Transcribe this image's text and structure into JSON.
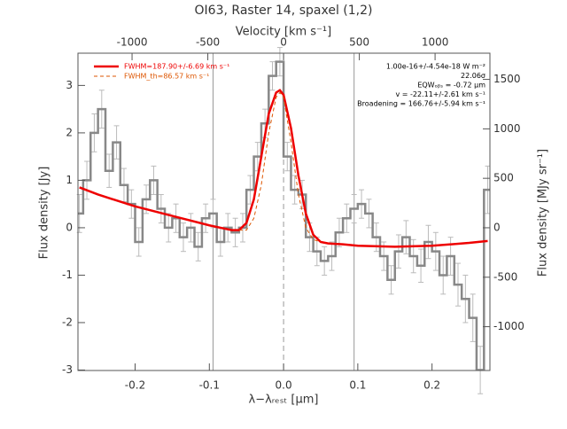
{
  "chart_data": {
    "type": "step",
    "title": "OI63, Raster 14, spaxel (1,2)",
    "xlabel": "λ−λᵣₑₛₜ [μm]",
    "ylabel": "Flux density [Jy]",
    "x2label": "Velocity [km s⁻¹]",
    "y2label": "Flux density [MJy sr⁻¹]",
    "xlim": [
      -0.277,
      0.278
    ],
    "xticks": [
      -0.2,
      -0.1,
      {
        "value": 0,
        "label": "0.0"
      },
      0.1,
      0.2
    ],
    "ylim": [
      -3.01,
      3.68
    ],
    "yticks": [
      -3,
      -2,
      -1,
      0,
      1,
      2,
      3
    ],
    "x2lim": [
      -1357,
      1362
    ],
    "x2ticks": [
      -1000,
      -500,
      0,
      500,
      1000
    ],
    "y2lim": [
      -1443,
      1765
    ],
    "y2ticks": [
      -1000,
      -500,
      0,
      500,
      1000,
      1500
    ],
    "vlines": [
      -0.095,
      0.095
    ],
    "center_line": 0,
    "spectrum": {
      "color": "#888888",
      "x": [
        -0.275,
        -0.265,
        -0.255,
        -0.245,
        -0.235,
        -0.225,
        -0.215,
        -0.205,
        -0.195,
        -0.185,
        -0.175,
        -0.165,
        -0.155,
        -0.145,
        -0.135,
        -0.125,
        -0.115,
        -0.105,
        -0.095,
        -0.085,
        -0.075,
        -0.065,
        -0.055,
        -0.045,
        -0.035,
        -0.025,
        -0.015,
        -0.005,
        0.005,
        0.015,
        0.025,
        0.035,
        0.045,
        0.055,
        0.065,
        0.075,
        0.085,
        0.095,
        0.105,
        0.115,
        0.125,
        0.135,
        0.145,
        0.155,
        0.165,
        0.175,
        0.185,
        0.195,
        0.205,
        0.215,
        0.225,
        0.235,
        0.245,
        0.255,
        0.265,
        0.275
      ],
      "values": [
        0.3,
        1.0,
        2.0,
        2.5,
        1.2,
        1.8,
        0.9,
        0.5,
        -0.3,
        0.6,
        1.0,
        0.4,
        0.0,
        0.2,
        -0.2,
        0.0,
        -0.4,
        0.2,
        0.3,
        -0.3,
        0.0,
        -0.1,
        0.0,
        0.8,
        1.5,
        2.2,
        3.2,
        3.5,
        1.5,
        0.8,
        0.7,
        -0.2,
        -0.5,
        -0.7,
        -0.6,
        -0.1,
        0.2,
        0.4,
        0.5,
        0.3,
        -0.2,
        -0.6,
        -1.1,
        -0.5,
        -0.2,
        -0.6,
        -0.8,
        -0.3,
        -0.5,
        -1.0,
        -0.6,
        -1.2,
        -1.5,
        -1.9,
        -3.0,
        0.8
      ],
      "errors": [
        0.4,
        0.4,
        0.4,
        0.4,
        0.35,
        0.35,
        0.35,
        0.3,
        0.3,
        0.3,
        0.3,
        0.3,
        0.3,
        0.3,
        0.3,
        0.3,
        0.3,
        0.3,
        0.3,
        0.3,
        0.3,
        0.3,
        0.3,
        0.3,
        0.3,
        0.3,
        0.3,
        0.3,
        0.3,
        0.3,
        0.3,
        0.3,
        0.3,
        0.3,
        0.3,
        0.3,
        0.3,
        0.3,
        0.3,
        0.3,
        0.3,
        0.3,
        0.3,
        0.35,
        0.35,
        0.35,
        0.35,
        0.35,
        0.4,
        0.4,
        0.4,
        0.45,
        0.5,
        0.5,
        0.5,
        0.5
      ]
    },
    "series": [
      {
        "name": "FWHM=187.90+/-6.69 km s⁻¹",
        "color": "#ee0000",
        "dash": false,
        "x": [
          -0.275,
          -0.25,
          -0.2,
          -0.15,
          -0.1,
          -0.07,
          -0.06,
          -0.05,
          -0.04,
          -0.03,
          -0.02,
          -0.01,
          -0.005,
          0,
          0.01,
          0.02,
          0.03,
          0.04,
          0.05,
          0.06,
          0.08,
          0.1,
          0.15,
          0.2,
          0.25,
          0.275
        ],
        "values": [
          0.85,
          0.7,
          0.45,
          0.25,
          0.05,
          -0.05,
          -0.05,
          0.1,
          0.6,
          1.5,
          2.4,
          2.85,
          2.9,
          2.8,
          2.1,
          1.1,
          0.3,
          -0.15,
          -0.3,
          -0.33,
          -0.35,
          -0.38,
          -0.4,
          -0.38,
          -0.32,
          -0.28
        ]
      },
      {
        "name": "FWHM_th=86.57 km s⁻¹",
        "color": "#dd5500",
        "dash": true,
        "x": [
          -0.06,
          -0.05,
          -0.04,
          -0.03,
          -0.02,
          -0.01,
          -0.005,
          0,
          0.01,
          0.02,
          0.03,
          0.04,
          0.05
        ],
        "values": [
          -0.05,
          -0.05,
          0.2,
          0.9,
          2.0,
          2.75,
          2.85,
          2.75,
          1.8,
          0.7,
          0.0,
          -0.25,
          -0.3
        ]
      }
    ],
    "annotations": [
      "1.00e-16+/-4.54e-18 W m⁻²",
      "22.06σ",
      "EQWₒᵦₛ = -0.72 μm",
      "v = -22.11+/-2.61 km s⁻¹",
      "Broadening = 166.76+/-5.94 km s⁻¹"
    ]
  }
}
